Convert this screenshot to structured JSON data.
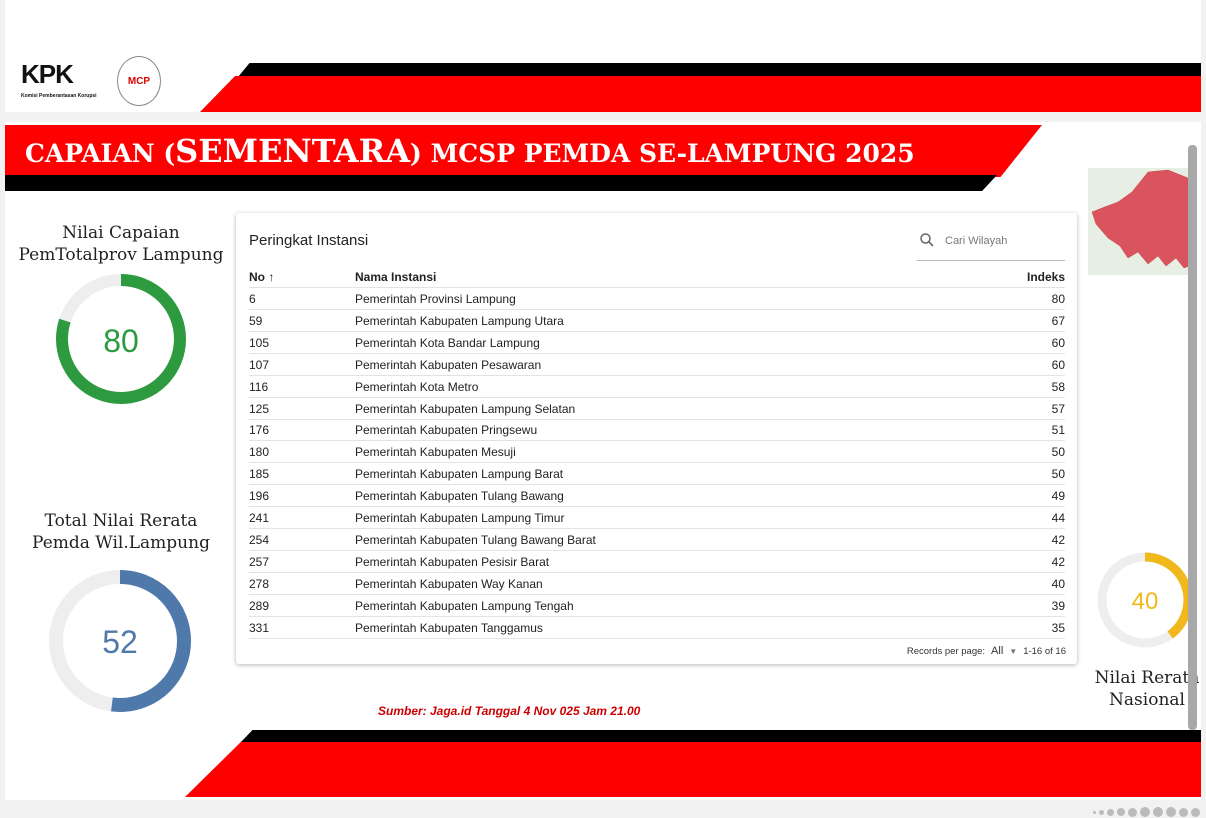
{
  "header": {
    "logo_kpk": "KPK",
    "logo_kpk_subtitle": "Komisi Pemberantasan Korupsi",
    "logo_mcp": "MCP"
  },
  "title": {
    "pre": "CAPAIAN (",
    "big": "SEMENTARA",
    "post": ") MCSP PEMDA SE-LAMPUNG 2025"
  },
  "gauges": {
    "prov": {
      "title_line1": "Nilai Capaian",
      "title_line2": "PemTotalprov Lampung",
      "value": "80",
      "percent": 80,
      "color": "#2e9a3f"
    },
    "pemda": {
      "title_line1": "Total Nilai Rerata",
      "title_line2": "Pemda Wil.Lampung",
      "value": "52",
      "percent": 52,
      "color": "#5079ab"
    },
    "nasional": {
      "title_line1": "Nilai Rerata",
      "title_line2": "Nasional",
      "value": "40",
      "percent": 40,
      "color": "#f0b81a"
    }
  },
  "table": {
    "title": "Peringkat Instansi",
    "search_placeholder": "Cari Wilayah",
    "columns": {
      "no": "No ↑",
      "nama": "Nama Instansi",
      "indeks": "Indeks"
    },
    "rows": [
      {
        "no": "6",
        "nama": "Pemerintah Provinsi Lampung",
        "indeks": "80"
      },
      {
        "no": "59",
        "nama": "Pemerintah Kabupaten Lampung Utara",
        "indeks": "67"
      },
      {
        "no": "105",
        "nama": "Pemerintah Kota Bandar Lampung",
        "indeks": "60"
      },
      {
        "no": "107",
        "nama": "Pemerintah Kabupaten Pesawaran",
        "indeks": "60"
      },
      {
        "no": "116",
        "nama": "Pemerintah Kota Metro",
        "indeks": "58"
      },
      {
        "no": "125",
        "nama": "Pemerintah Kabupaten Lampung Selatan",
        "indeks": "57"
      },
      {
        "no": "176",
        "nama": "Pemerintah Kabupaten Pringsewu",
        "indeks": "51"
      },
      {
        "no": "180",
        "nama": "Pemerintah Kabupaten Mesuji",
        "indeks": "50"
      },
      {
        "no": "185",
        "nama": "Pemerintah Kabupaten Lampung Barat",
        "indeks": "50"
      },
      {
        "no": "196",
        "nama": "Pemerintah Kabupaten Tulang Bawang",
        "indeks": "49"
      },
      {
        "no": "241",
        "nama": "Pemerintah Kabupaten Lampung Timur",
        "indeks": "44"
      },
      {
        "no": "254",
        "nama": "Pemerintah Kabupaten Tulang Bawang Barat",
        "indeks": "42"
      },
      {
        "no": "257",
        "nama": "Pemerintah Kabupaten Pesisir Barat",
        "indeks": "42"
      },
      {
        "no": "278",
        "nama": "Pemerintah Kabupaten Way Kanan",
        "indeks": "40"
      },
      {
        "no": "289",
        "nama": "Pemerintah Kabupaten Lampung Tengah",
        "indeks": "39"
      },
      {
        "no": "331",
        "nama": "Pemerintah Kabupaten Tanggamus",
        "indeks": "35"
      }
    ],
    "footer": {
      "records_label": "Records per page:",
      "records_value": "All",
      "range": "1-16 of 16"
    }
  },
  "source": "Sumber: Jaga.id Tanggal 4 Nov 025 Jam 21.00",
  "colors": {
    "red": "#fe0000",
    "black": "#000000"
  }
}
